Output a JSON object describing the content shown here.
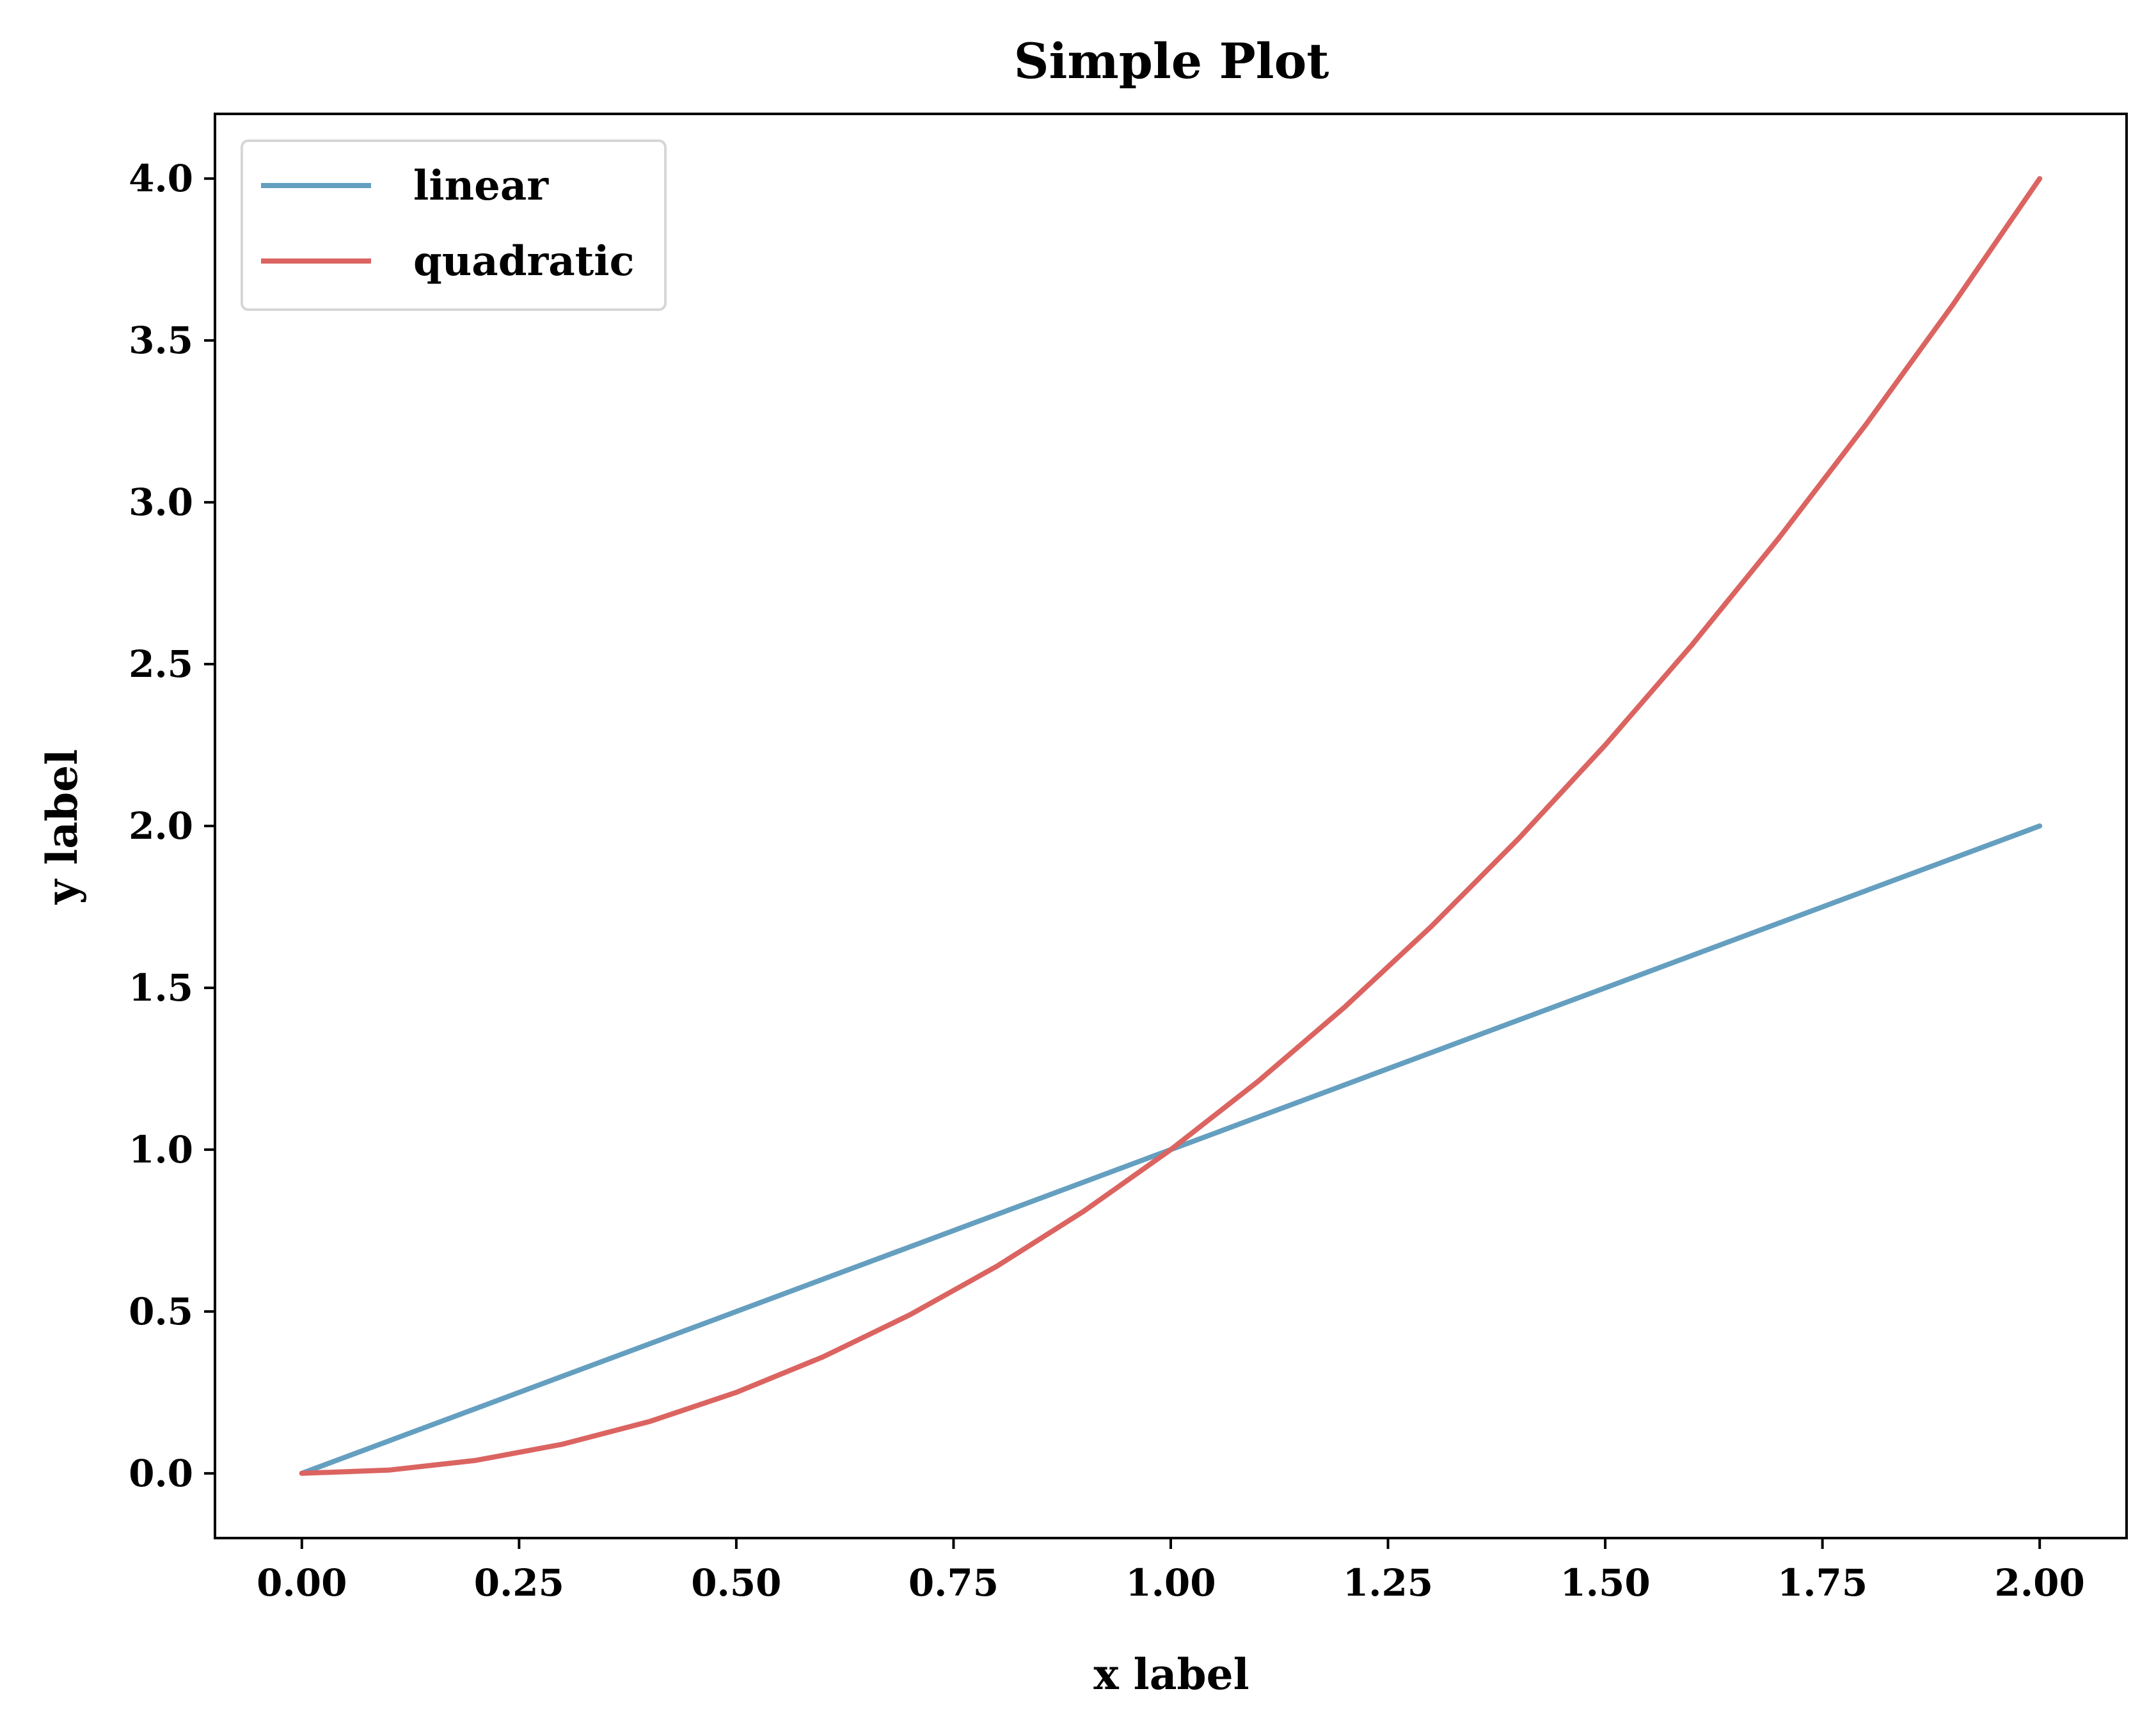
{
  "chart_data": {
    "type": "line",
    "title": "Simple Plot",
    "xlabel": "x label",
    "ylabel": "y label",
    "xlim": [
      -0.1,
      2.1
    ],
    "ylim": [
      -0.2,
      4.2
    ],
    "xticks": [
      0.0,
      0.25,
      0.5,
      0.75,
      1.0,
      1.25,
      1.5,
      1.75,
      2.0
    ],
    "xtick_labels": [
      "0.00",
      "0.25",
      "0.50",
      "0.75",
      "1.00",
      "1.25",
      "1.50",
      "1.75",
      "2.00"
    ],
    "yticks": [
      0.0,
      0.5,
      1.0,
      1.5,
      2.0,
      2.5,
      3.0,
      3.5,
      4.0
    ],
    "ytick_labels": [
      "0.0",
      "0.5",
      "1.0",
      "1.5",
      "2.0",
      "2.5",
      "3.0",
      "3.5",
      "4.0"
    ],
    "grid": false,
    "legend_position": "top-left",
    "x": [
      0.0,
      0.1,
      0.2,
      0.3,
      0.4,
      0.5,
      0.6,
      0.7,
      0.8,
      0.9,
      1.0,
      1.1,
      1.2,
      1.3,
      1.4,
      1.5,
      1.6,
      1.7,
      1.8,
      1.9,
      2.0
    ],
    "series": [
      {
        "name": "linear",
        "color": "#659FC0",
        "values": [
          0.0,
          0.1,
          0.2,
          0.3,
          0.4,
          0.5,
          0.6,
          0.7,
          0.8,
          0.9,
          1.0,
          1.1,
          1.2,
          1.3,
          1.4,
          1.5,
          1.6,
          1.7,
          1.8,
          1.9,
          2.0
        ]
      },
      {
        "name": "quadratic",
        "color": "#DB6461",
        "values": [
          0.0,
          0.01,
          0.04,
          0.09,
          0.16,
          0.25,
          0.36,
          0.49,
          0.64,
          0.81,
          1.0,
          1.21,
          1.44,
          1.69,
          1.96,
          2.25,
          2.56,
          2.89,
          3.24,
          3.61,
          4.0
        ]
      }
    ]
  }
}
